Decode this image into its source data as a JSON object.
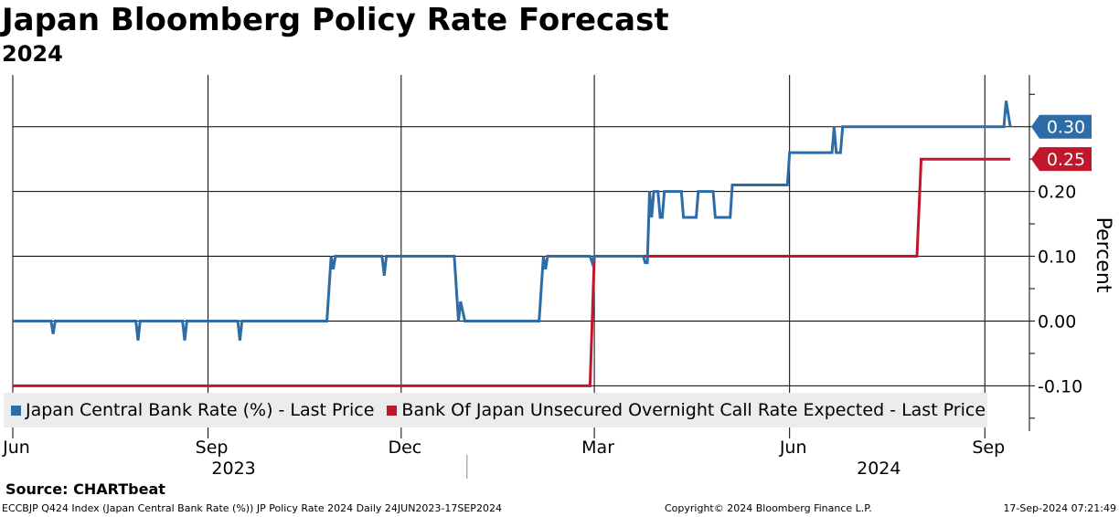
{
  "header": {
    "title": "Japan Bloomberg Policy Rate Forecast",
    "subtitle": "2024"
  },
  "chart_data": {
    "type": "line",
    "ylabel": "Percent",
    "ylim": [
      -0.17,
      0.38
    ],
    "yticks": [
      {
        "value": 0.2,
        "label": "0.20"
      },
      {
        "value": 0.1,
        "label": "0.10"
      },
      {
        "value": 0.0,
        "label": "0.00"
      },
      {
        "value": -0.1,
        "label": "-0.10"
      }
    ],
    "gridlines_y": [
      0.3,
      0.2,
      0.1,
      0.0,
      -0.1
    ],
    "xlim": [
      "2023-06-01",
      "2024-09-22"
    ],
    "xticks": [
      {
        "date": "2023-06-01",
        "label": "Jun"
      },
      {
        "date": "2023-09-01",
        "label": "Sep"
      },
      {
        "date": "2023-12-01",
        "label": "Dec"
      },
      {
        "date": "2024-03-01",
        "label": "Mar"
      },
      {
        "date": "2024-06-01",
        "label": "Jun"
      },
      {
        "date": "2024-09-01",
        "label": "Sep"
      }
    ],
    "year_labels": [
      {
        "date": "2023-09-01",
        "label": "2023"
      },
      {
        "date": "2024-07-01",
        "label": "2024"
      }
    ],
    "year_divider": "2024-01-01",
    "grid": true,
    "legend_position": "bottom",
    "series": [
      {
        "name": "Japan Central Bank Rate (%) - Last Price",
        "color": "#2e6ca8",
        "last_label": "0.30",
        "points": [
          [
            "2023-06-01",
            0.0
          ],
          [
            "2023-06-19",
            0.0
          ],
          [
            "2023-06-20",
            -0.02
          ],
          [
            "2023-06-21",
            0.0
          ],
          [
            "2023-07-29",
            0.0
          ],
          [
            "2023-07-30",
            -0.03
          ],
          [
            "2023-07-31",
            0.0
          ],
          [
            "2023-08-20",
            0.0
          ],
          [
            "2023-08-21",
            -0.03
          ],
          [
            "2023-08-22",
            0.0
          ],
          [
            "2023-09-15",
            0.0
          ],
          [
            "2023-09-16",
            -0.03
          ],
          [
            "2023-09-17",
            0.0
          ],
          [
            "2023-10-27",
            0.0
          ],
          [
            "2023-10-29",
            0.1
          ],
          [
            "2023-10-30",
            0.08
          ],
          [
            "2023-10-31",
            0.1
          ],
          [
            "2023-11-22",
            0.1
          ],
          [
            "2023-11-23",
            0.07
          ],
          [
            "2023-11-24",
            0.1
          ],
          [
            "2023-12-26",
            0.1
          ],
          [
            "2023-12-28",
            0.0
          ],
          [
            "2023-12-29",
            0.03
          ],
          [
            "2023-12-31",
            0.0
          ],
          [
            "2024-02-04",
            0.0
          ],
          [
            "2024-02-06",
            0.1
          ],
          [
            "2024-02-07",
            0.08
          ],
          [
            "2024-02-08",
            0.1
          ],
          [
            "2024-02-28",
            0.1
          ],
          [
            "2024-02-29",
            0.09
          ],
          [
            "2024-03-01",
            0.1
          ],
          [
            "2024-03-24",
            0.1
          ],
          [
            "2024-03-25",
            0.09
          ],
          [
            "2024-03-26",
            0.09
          ],
          [
            "2024-03-27",
            0.2
          ],
          [
            "2024-03-28",
            0.16
          ],
          [
            "2024-03-29",
            0.2
          ],
          [
            "2024-03-31",
            0.2
          ],
          [
            "2024-04-01",
            0.16
          ],
          [
            "2024-04-02",
            0.16
          ],
          [
            "2024-04-03",
            0.2
          ],
          [
            "2024-04-11",
            0.2
          ],
          [
            "2024-04-12",
            0.16
          ],
          [
            "2024-04-18",
            0.16
          ],
          [
            "2024-04-19",
            0.2
          ],
          [
            "2024-04-26",
            0.2
          ],
          [
            "2024-04-27",
            0.16
          ],
          [
            "2024-05-04",
            0.16
          ],
          [
            "2024-05-05",
            0.21
          ],
          [
            "2024-05-31",
            0.21
          ],
          [
            "2024-06-01",
            0.26
          ],
          [
            "2024-06-21",
            0.26
          ],
          [
            "2024-06-22",
            0.3
          ],
          [
            "2024-06-23",
            0.26
          ],
          [
            "2024-06-25",
            0.26
          ],
          [
            "2024-06-26",
            0.3
          ],
          [
            "2024-09-10",
            0.3
          ],
          [
            "2024-09-11",
            0.34
          ],
          [
            "2024-09-13",
            0.3
          ]
        ]
      },
      {
        "name": "Bank Of Japan Unsecured Overnight Call Rate Expected - Last Price",
        "color": "#c0172d",
        "last_label": "0.25",
        "points": [
          [
            "2023-06-01",
            -0.1
          ],
          [
            "2024-02-28",
            -0.1
          ],
          [
            "2024-03-01",
            0.1
          ],
          [
            "2024-07-31",
            0.1
          ],
          [
            "2024-08-02",
            0.25
          ],
          [
            "2024-09-13",
            0.25
          ]
        ]
      }
    ]
  },
  "source": {
    "label": "Source:",
    "value": "CHARTbeat"
  },
  "footer": {
    "ticker": "ECCBJP Q424 Index (Japan Central Bank Rate (%)) JP Policy Rate 2024  Daily 24JUN2023-17SEP2024",
    "copyright": "Copyright© 2024 Bloomberg Finance L.P.",
    "timestamp": "17-Sep-2024 07:21:49"
  }
}
